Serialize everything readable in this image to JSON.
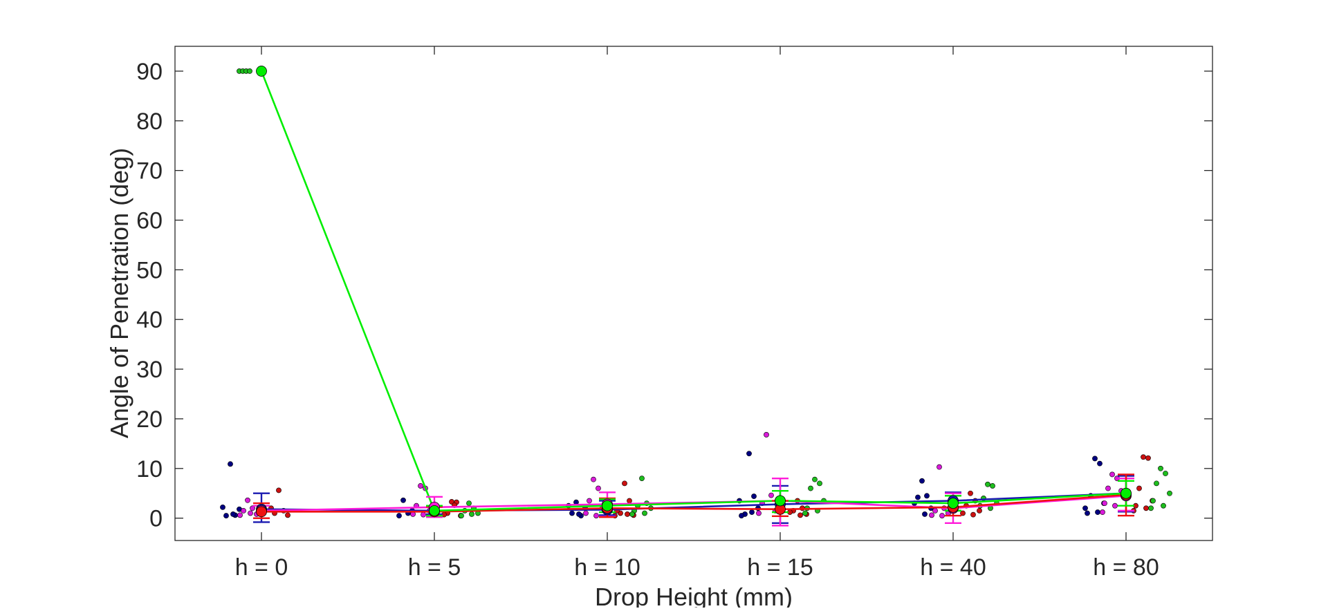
{
  "chart_data": {
    "type": "scatter",
    "title": "",
    "xlabel": "Drop Height (mm)",
    "ylabel": "Angle of Penetration (deg)",
    "categories": [
      "h = 0",
      "h = 5",
      "h = 10",
      "h = 15",
      "h = 40",
      "h = 80"
    ],
    "ylim": [
      -4.5,
      95
    ],
    "yticks": [
      0,
      10,
      20,
      30,
      40,
      50,
      60,
      70,
      80,
      90
    ],
    "grid": false,
    "legend": "none",
    "series": [
      {
        "color": "#1a1ab0",
        "point_color": "#000080",
        "means": [
          1.8,
          1.5,
          1.7,
          2.8,
          3.5,
          5.0
        ],
        "err_low": [
          -0.8,
          0.8,
          0.6,
          -1.0,
          1.5,
          1.3
        ],
        "err_high": [
          5.0,
          2.5,
          3.5,
          6.5,
          5.2,
          8.5
        ],
        "points": [
          [
            10.9,
            0.6,
            0.5,
            1.8,
            2.2,
            0.8
          ],
          [
            3.6,
            1.0,
            0.5,
            1.5
          ],
          [
            3.2,
            0.5,
            1.0,
            2.0,
            2.5,
            0.8
          ],
          [
            13.0,
            4.4,
            0.8,
            2.0,
            0.5,
            1.2,
            3.5
          ],
          [
            7.5,
            4.5,
            4.2,
            2.0,
            3.0,
            0.8
          ],
          [
            12.0,
            11.0,
            4.5,
            3.0,
            1.0,
            1.2,
            2.0
          ]
        ]
      },
      {
        "color": "#ff1ad9",
        "point_color": "#d91ad9",
        "means": [
          1.5,
          2.2,
          2.8,
          3.5,
          2.0,
          4.5
        ],
        "err_low": [
          0.0,
          0.2,
          0.3,
          -1.5,
          -1.0,
          1.5
        ],
        "err_high": [
          2.5,
          4.3,
          5.2,
          8.0,
          5.0,
          8.0
        ],
        "points": [
          [
            3.6,
            2.0,
            1.5,
            0.8,
            0.6,
            1.0
          ],
          [
            6.5,
            6.0,
            2.5,
            1.5,
            0.8,
            0.7
          ],
          [
            7.8,
            6.0,
            3.5,
            2.0,
            1.0,
            0.5
          ],
          [
            16.8,
            4.6,
            3.0,
            1.5,
            1.0
          ],
          [
            10.3,
            2.0,
            1.5,
            1.0,
            0.6,
            0.5
          ],
          [
            8.8,
            8.0,
            6.0,
            5.5,
            3.0,
            2.5,
            1.2
          ]
        ]
      },
      {
        "color": "#ee1111",
        "point_color": "#cc1111",
        "means": [
          1.3,
          1.3,
          2.0,
          1.8,
          2.2,
          4.7
        ],
        "err_low": [
          0.0,
          0.5,
          0.2,
          0.4,
          0.5,
          0.5
        ],
        "err_high": [
          3.0,
          2.3,
          4.0,
          3.5,
          4.5,
          8.8
        ],
        "points": [
          [
            5.6,
            1.5,
            1.0,
            0.6,
            2.0
          ],
          [
            3.3,
            3.2,
            1.0,
            0.5,
            0.7,
            2.6
          ],
          [
            7.0,
            3.5,
            1.0,
            0.6,
            1.5,
            0.8,
            0.5
          ],
          [
            3.5,
            2.0,
            1.5,
            0.8,
            1.2,
            0.6
          ],
          [
            5.0,
            3.5,
            2.5,
            1.5,
            1.0,
            0.7
          ],
          [
            12.3,
            12.1,
            6.0,
            3.5,
            2.5,
            2.0,
            1.5
          ]
        ]
      },
      {
        "color": "#00ee00",
        "point_color": "#1ebe1e",
        "means": [
          90.0,
          1.5,
          2.5,
          3.5,
          3.0,
          5.0
        ],
        "err_low": [
          90.0,
          0.5,
          1.2,
          1.2,
          1.5,
          2.5
        ],
        "err_high": [
          90.0,
          2.5,
          3.8,
          5.5,
          4.5,
          7.5
        ],
        "points": [
          [
            90.0,
            90.0,
            90.0,
            90.0
          ],
          [
            3.0,
            2.0,
            1.5,
            1.0,
            0.5,
            0.8
          ],
          [
            8.0,
            3.0,
            2.5,
            2.0,
            1.5,
            1.0,
            0.8
          ],
          [
            7.8,
            7.0,
            6.0,
            3.5,
            2.0,
            1.5,
            1.0
          ],
          [
            6.8,
            6.5,
            4.0,
            3.0,
            2.5,
            2.0
          ],
          [
            10.0,
            9.0,
            7.0,
            5.0,
            3.5,
            2.5,
            2.0
          ]
        ]
      }
    ]
  }
}
